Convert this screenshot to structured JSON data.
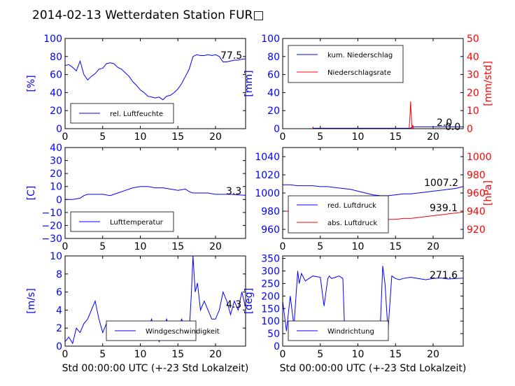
{
  "title": "2014-02-13 Wetterdaten Station FUR□",
  "colors": {
    "primary_axis": "#0000ff",
    "secondary_axis": "#ff0000",
    "series_blue": "#0000ff",
    "series_red": "#ff0000",
    "legend_border": "#000000"
  },
  "chart_data": [
    {
      "type": "line",
      "position": "top-left",
      "xlabel": "",
      "ylabel": "[%]",
      "xlim": [
        0,
        24
      ],
      "ylim": [
        0,
        100
      ],
      "xticks": [
        "0",
        "5",
        "10",
        "15",
        "20"
      ],
      "yticks": [
        "0",
        "20",
        "40",
        "60",
        "80",
        "100"
      ],
      "last_value": "77.5",
      "legend_loc": "lower-left",
      "series": [
        {
          "name": "rel. Luftfeuchte",
          "axis": "left",
          "color": "#0000ff",
          "x": [
            0,
            0.5,
            1,
            1.5,
            2,
            2.5,
            3,
            3.5,
            4,
            4.5,
            5,
            5.5,
            6,
            6.5,
            7,
            7.5,
            8,
            8.5,
            9,
            9.5,
            10,
            10.5,
            11,
            11.5,
            12,
            12.5,
            13,
            13.5,
            14,
            14.5,
            15,
            15.5,
            16,
            16.5,
            17,
            17.5,
            18,
            18.5,
            19,
            19.5,
            20,
            20.5,
            21,
            21.5,
            22,
            22.5,
            23,
            23.5,
            24
          ],
          "y": [
            70,
            71,
            68,
            64,
            75,
            60,
            54,
            58,
            61,
            66,
            67,
            72,
            73,
            72,
            68,
            66,
            62,
            58,
            52,
            48,
            43,
            40,
            36,
            35,
            34,
            35,
            32,
            36,
            37,
            40,
            44,
            50,
            58,
            66,
            80,
            82,
            81,
            81,
            82,
            81,
            82,
            80,
            74,
            74,
            75,
            76,
            76,
            77,
            77.5
          ]
        }
      ]
    },
    {
      "type": "line",
      "position": "top-right",
      "xlabel": "",
      "ylabel": "[mm]",
      "ylabel_right": "[mm/std]",
      "xlim": [
        0,
        24
      ],
      "ylim": [
        0,
        100
      ],
      "ylim_right": [
        0,
        50
      ],
      "xticks": [
        "0",
        "5",
        "10",
        "15",
        "20"
      ],
      "yticks": [
        "0",
        "20",
        "40",
        "60",
        "80",
        "100"
      ],
      "yticks_right": [
        "0",
        "10",
        "20",
        "30",
        "40",
        "50"
      ],
      "last_value": "2.0",
      "last_value_right": "0.0",
      "legend_loc": "upper-left",
      "series": [
        {
          "name": "kum. Niederschlag",
          "axis": "left",
          "color": "#0000ff",
          "x": [
            0,
            4,
            4.1,
            17,
            17.2,
            18,
            20,
            24
          ],
          "y": [
            0,
            0,
            0.5,
            0.5,
            2,
            2,
            2,
            2
          ]
        },
        {
          "name": "Niederschlagsrate",
          "axis": "right",
          "color": "#ff0000",
          "x": [
            0,
            4,
            4.05,
            4.1,
            16.8,
            16.9,
            17,
            17.1,
            17.2,
            17.3,
            17.4,
            24
          ],
          "y": [
            0,
            0,
            1,
            0,
            0,
            5,
            15,
            7,
            0,
            2,
            0,
            0
          ]
        }
      ]
    },
    {
      "type": "line",
      "position": "middle-left",
      "xlabel": "",
      "ylabel": "[C]",
      "xlim": [
        0,
        24
      ],
      "ylim": [
        -30,
        40
      ],
      "xticks": [
        "0",
        "5",
        "10",
        "15",
        "20"
      ],
      "yticks": [
        "−30",
        "−20",
        "−10",
        "0",
        "10",
        "20",
        "30",
        "40"
      ],
      "last_value": "3.3",
      "legend_loc": "lower-left",
      "series": [
        {
          "name": "Lufttemperatur",
          "axis": "left",
          "color": "#0000ff",
          "x": [
            0,
            1,
            2,
            2.5,
            3,
            4,
            5,
            6,
            7,
            8,
            9,
            10,
            11,
            12,
            13,
            14,
            15,
            16,
            16.5,
            17,
            18,
            19,
            20,
            21,
            22,
            23,
            24
          ],
          "y": [
            0,
            0,
            1,
            3,
            4,
            4,
            4,
            3,
            5,
            7,
            9,
            10,
            10,
            9,
            9,
            8,
            7,
            8,
            6,
            5,
            5,
            5,
            4,
            4,
            4,
            3.5,
            3.3
          ]
        }
      ]
    },
    {
      "type": "line",
      "position": "middle-right",
      "xlabel": "",
      "ylabel": "",
      "ylabel_right": "[hPa]",
      "xlim": [
        0,
        24
      ],
      "ylim": [
        950,
        1050
      ],
      "ylim_right": [
        910,
        1010
      ],
      "xticks": [
        "0",
        "5",
        "10",
        "15",
        "20"
      ],
      "yticks": [
        "960",
        "980",
        "1000",
        "1020",
        "1040"
      ],
      "yticks_right": [
        "920",
        "940",
        "960",
        "980",
        "1000"
      ],
      "last_value": "1007.2",
      "last_value_right": "939.1",
      "legend_loc": "lower-left",
      "series": [
        {
          "name": "red. Luftdruck",
          "axis": "left",
          "color": "#0000ff",
          "x": [
            0,
            1,
            2,
            3,
            4,
            5,
            6,
            7,
            8,
            9,
            10,
            11,
            12,
            13,
            14,
            15,
            16,
            17,
            18,
            19,
            20,
            21,
            22,
            23,
            24
          ],
          "y": [
            1009,
            1009,
            1008,
            1008,
            1008,
            1007,
            1007,
            1006,
            1005,
            1004,
            1002,
            1000,
            998,
            997,
            997,
            998,
            999,
            999,
            1000,
            1001,
            1002,
            1003,
            1004,
            1005,
            1007.2
          ]
        },
        {
          "name": "abs. Luftdruck",
          "axis": "right",
          "color": "#ff0000",
          "x": [
            0,
            1,
            2,
            3,
            4,
            5,
            6,
            7,
            8,
            9,
            10,
            11,
            12,
            13,
            14,
            15,
            16,
            17,
            18,
            19,
            20,
            21,
            22,
            23,
            24
          ],
          "y": [
            940,
            940,
            940,
            939,
            941,
            940,
            940,
            939,
            937,
            935,
            934,
            932,
            931,
            931,
            931,
            931,
            932,
            932,
            933,
            934,
            935,
            936,
            937,
            938,
            939.1
          ]
        }
      ]
    },
    {
      "type": "line",
      "position": "bottom-left",
      "xlabel": "Std 00:00:00 UTC (+-23 Std Lokalzeit)",
      "ylabel": "[m/s]",
      "xlim": [
        0,
        24
      ],
      "ylim": [
        0,
        10
      ],
      "xticks": [
        "0",
        "5",
        "10",
        "15",
        "20"
      ],
      "yticks": [
        "0",
        "2",
        "4",
        "6",
        "8",
        "10"
      ],
      "last_value": "4.3",
      "legend_loc": "lower-center",
      "series": [
        {
          "name": "Windgeschwindigkeit",
          "axis": "left",
          "color": "#0000ff",
          "x": [
            0,
            0.5,
            1,
            1.5,
            2,
            2.5,
            3,
            3.5,
            4,
            4.5,
            5,
            5.5,
            6,
            6.5,
            7,
            7.5,
            8,
            8.5,
            9,
            9.5,
            10,
            10.5,
            11,
            11.5,
            12,
            12.5,
            13,
            13.5,
            14,
            14.5,
            15,
            15.5,
            16,
            16.5,
            16.8,
            17,
            17.3,
            17.6,
            18,
            18.5,
            19,
            19.5,
            20,
            20.5,
            21,
            21.5,
            22,
            22.5,
            23,
            23.5,
            24
          ],
          "y": [
            0.5,
            1,
            0.3,
            2,
            1.5,
            2.5,
            3,
            4,
            5,
            3,
            1.5,
            2.5,
            1,
            2,
            0.8,
            1.5,
            2,
            1,
            2.5,
            1.5,
            2,
            2.5,
            1.8,
            3,
            1.5,
            0.5,
            1.5,
            3,
            1.8,
            2.5,
            2,
            3,
            2,
            1.5,
            6,
            10,
            6,
            7,
            4,
            5,
            4,
            3,
            3,
            4,
            6,
            5,
            3.5,
            5,
            4,
            6,
            4.3
          ]
        }
      ]
    },
    {
      "type": "line",
      "position": "bottom-right",
      "xlabel": "Std 00:00:00 UTC (+-23 Std Lokalzeit)",
      "ylabel": "[deg]",
      "xlim": [
        0,
        24
      ],
      "ylim": [
        0,
        360
      ],
      "xticks": [
        "0",
        "5",
        "10",
        "15",
        "20"
      ],
      "yticks": [
        "0",
        "50",
        "100",
        "150",
        "200",
        "250",
        "300",
        "350"
      ],
      "last_value": "271.6",
      "legend_loc": "lower-left",
      "series": [
        {
          "name": "Windrichtung",
          "axis": "left",
          "color": "#0000ff",
          "x": [
            0,
            0.5,
            1,
            1.5,
            2,
            2.2,
            2.5,
            3,
            4,
            5,
            5.5,
            6,
            6.2,
            6.5,
            7,
            7.5,
            8,
            8.2,
            8.5,
            9,
            9.5,
            10,
            10.5,
            11,
            11.5,
            12,
            12.5,
            13,
            13.3,
            13.6,
            14,
            14.5,
            15,
            15.5,
            16,
            17,
            18,
            19,
            20,
            21,
            22,
            23,
            24
          ],
          "y": [
            180,
            60,
            200,
            80,
            300,
            250,
            290,
            260,
            280,
            275,
            160,
            270,
            280,
            270,
            275,
            280,
            270,
            100,
            90,
            95,
            85,
            90,
            80,
            100,
            90,
            95,
            85,
            100,
            320,
            250,
            60,
            280,
            270,
            265,
            270,
            275,
            270,
            265,
            270,
            272,
            268,
            270,
            271.6
          ]
        }
      ]
    }
  ]
}
